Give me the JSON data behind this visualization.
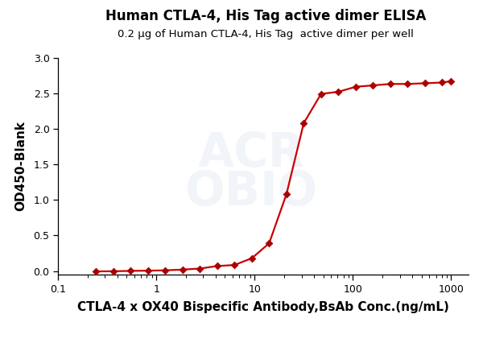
{
  "title": "Human CTLA-4, His Tag active dimer ELISA",
  "subtitle": "0.2 μg of Human CTLA-4, His Tag  active dimer per well",
  "xlabel": "CTLA-4 x OX40 Bispecific Antibody,BsAb Conc.(ng/mL)",
  "ylabel": "OD450-Blank",
  "title_fontsize": 12,
  "subtitle_fontsize": 9.5,
  "xlabel_fontsize": 11,
  "ylabel_fontsize": 11,
  "line_color": "#cc0000",
  "marker_color": "#aa0000",
  "marker": "D",
  "marker_size": 5,
  "ylim": [
    -0.05,
    3.0
  ],
  "yticks": [
    0.0,
    0.5,
    1.0,
    1.5,
    2.0,
    2.5,
    3.0
  ],
  "xtick_labels": [
    "0.1",
    "1",
    "10",
    "100",
    "1000"
  ],
  "xtick_values": [
    0.1,
    1,
    10,
    100,
    1000
  ],
  "data_x": [
    0.244,
    0.366,
    0.549,
    0.823,
    1.235,
    1.852,
    2.778,
    4.167,
    6.25,
    9.375,
    14.06,
    21.09,
    31.64,
    47.46,
    71.19,
    106.8,
    160.2,
    240.4,
    360.6,
    541.0,
    811.0,
    1000.0
  ],
  "data_y": [
    -0.005,
    -0.003,
    0.002,
    0.005,
    0.01,
    0.02,
    0.035,
    0.07,
    0.085,
    0.18,
    0.39,
    1.08,
    2.08,
    2.49,
    2.52,
    2.59,
    2.61,
    2.63,
    2.63,
    2.64,
    2.65,
    2.67
  ],
  "background_color": "#ffffff",
  "watermark_text": "ACROBIO",
  "watermark_color": "#c8d4e8",
  "watermark_fontsize": 42,
  "watermark_alpha": 0.25
}
